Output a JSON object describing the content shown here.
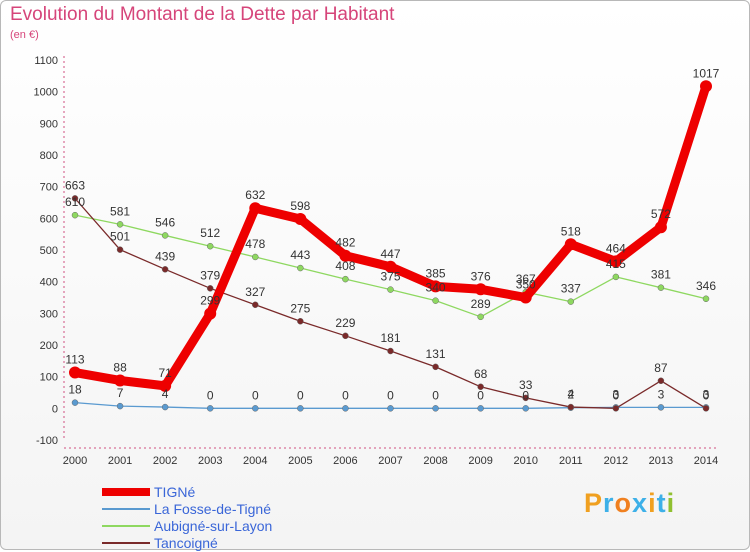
{
  "title": "Evolution du Montant de la Dette par Habitant",
  "subtitle": "(en €)",
  "logo": {
    "chars": [
      "P",
      "r",
      "o",
      "x",
      "i",
      "t",
      "i"
    ],
    "colors": [
      "#f0a020",
      "#3db0e8",
      "#f08020",
      "#3db0e8",
      "#f0a020",
      "#3db0e8",
      "#90c030"
    ]
  },
  "chart_data": {
    "type": "line",
    "x": [
      "2000",
      "2001",
      "2002",
      "2003",
      "2004",
      "2005",
      "2006",
      "2007",
      "2008",
      "2009",
      "2010",
      "2011",
      "2012",
      "2013",
      "2014"
    ],
    "ylim": [
      -100,
      1100
    ],
    "yticks": [
      "-100",
      "0",
      "100",
      "200",
      "300",
      "400",
      "500",
      "600",
      "700",
      "800",
      "900",
      "1000",
      "1100"
    ],
    "grid": false,
    "legend_position": "bottom-left",
    "series": [
      {
        "name": "TIGNé",
        "color": "#ee0000",
        "values": [
          113,
          88,
          71,
          299,
          632,
          598,
          482,
          447,
          385,
          376,
          350,
          518,
          464,
          572,
          1017
        ],
        "labels": [
          "113",
          "88",
          "71",
          "299",
          "632",
          "598",
          "482",
          "447",
          "385",
          "376",
          "350",
          "518",
          "464",
          "572",
          "1017"
        ]
      },
      {
        "name": "La Fosse-de-Tigné",
        "color": "#5a9ad0",
        "values": [
          18,
          7,
          4,
          0,
          0,
          0,
          0,
          0,
          0,
          0,
          0,
          2,
          3,
          3,
          3
        ],
        "labels": [
          "18",
          "7",
          "4",
          "0",
          "0",
          "0",
          "0",
          "0",
          "0",
          "0",
          "0",
          "2",
          "3",
          "3",
          "3"
        ]
      },
      {
        "name": "Aubigné-sur-Layon",
        "color": "#8ed860",
        "values": [
          610,
          581,
          546,
          512,
          478,
          443,
          408,
          375,
          340,
          289,
          367,
          337,
          415,
          381,
          346
        ],
        "labels": [
          "610",
          "581",
          "546",
          "512",
          "478",
          "443",
          "408",
          "375",
          "340",
          "289",
          "367",
          "337",
          "415",
          "381",
          "346"
        ]
      },
      {
        "name": "Tancoigné",
        "color": "#7a2a2a",
        "values": [
          663,
          501,
          439,
          379,
          327,
          275,
          229,
          181,
          131,
          68,
          33,
          4,
          0,
          87,
          0
        ],
        "labels": [
          "663",
          "501",
          "439",
          "379",
          "327",
          "275",
          "229",
          "181",
          "131",
          "68",
          "33",
          "4",
          "0",
          "87",
          "0"
        ]
      }
    ]
  }
}
